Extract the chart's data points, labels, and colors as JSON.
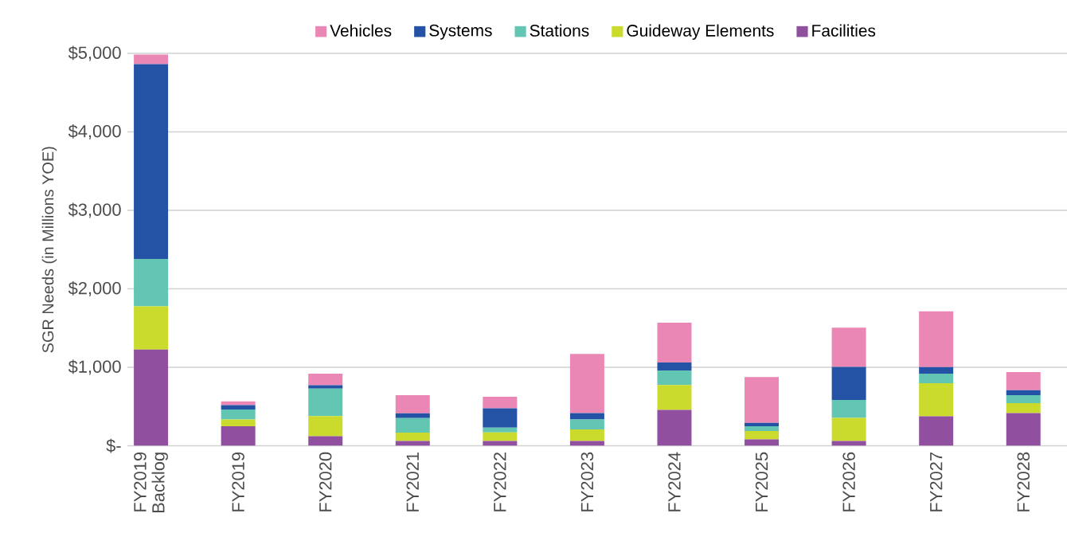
{
  "chart_data": {
    "type": "bar",
    "stacked": true,
    "ylabel": "SGR Needs (in Millions YOE)",
    "categories": [
      "FY2019 Backlog",
      "FY2019",
      "FY2020",
      "FY2021",
      "FY2022",
      "FY2023",
      "FY2024",
      "FY2025",
      "FY2026",
      "FY2027",
      "FY2028"
    ],
    "series": [
      {
        "name": "Facilities",
        "color": "#91509f",
        "values": [
          1225,
          250,
          123,
          62,
          61,
          61,
          456,
          81,
          61,
          375,
          416
        ]
      },
      {
        "name": "Guideway Elements",
        "color": "#cadb2e",
        "values": [
          552,
          86,
          254,
          106,
          108,
          148,
          318,
          108,
          294,
          422,
          128
        ]
      },
      {
        "name": "Stations",
        "color": "#62c6b3",
        "values": [
          603,
          126,
          352,
          185,
          61,
          125,
          185,
          61,
          230,
          122,
          101
        ]
      },
      {
        "name": "Systems",
        "color": "#2453a6",
        "values": [
          2483,
          55,
          42,
          61,
          246,
          82,
          102,
          41,
          419,
          84,
          64
        ]
      },
      {
        "name": "Vehicles",
        "color": "#eb87b4",
        "values": [
          123,
          48,
          147,
          230,
          149,
          753,
          507,
          584,
          500,
          710,
          230
        ]
      }
    ],
    "ylim": [
      0,
      5000
    ],
    "yticks": [
      {
        "value": 0,
        "label": "$-"
      },
      {
        "value": 1000,
        "label": "$1,000"
      },
      {
        "value": 2000,
        "label": "$2,000"
      },
      {
        "value": 3000,
        "label": "$3,000"
      },
      {
        "value": 4000,
        "label": "$4,000"
      },
      {
        "value": 5000,
        "label": "$5,000"
      }
    ],
    "grid": "y",
    "legend": "top"
  }
}
